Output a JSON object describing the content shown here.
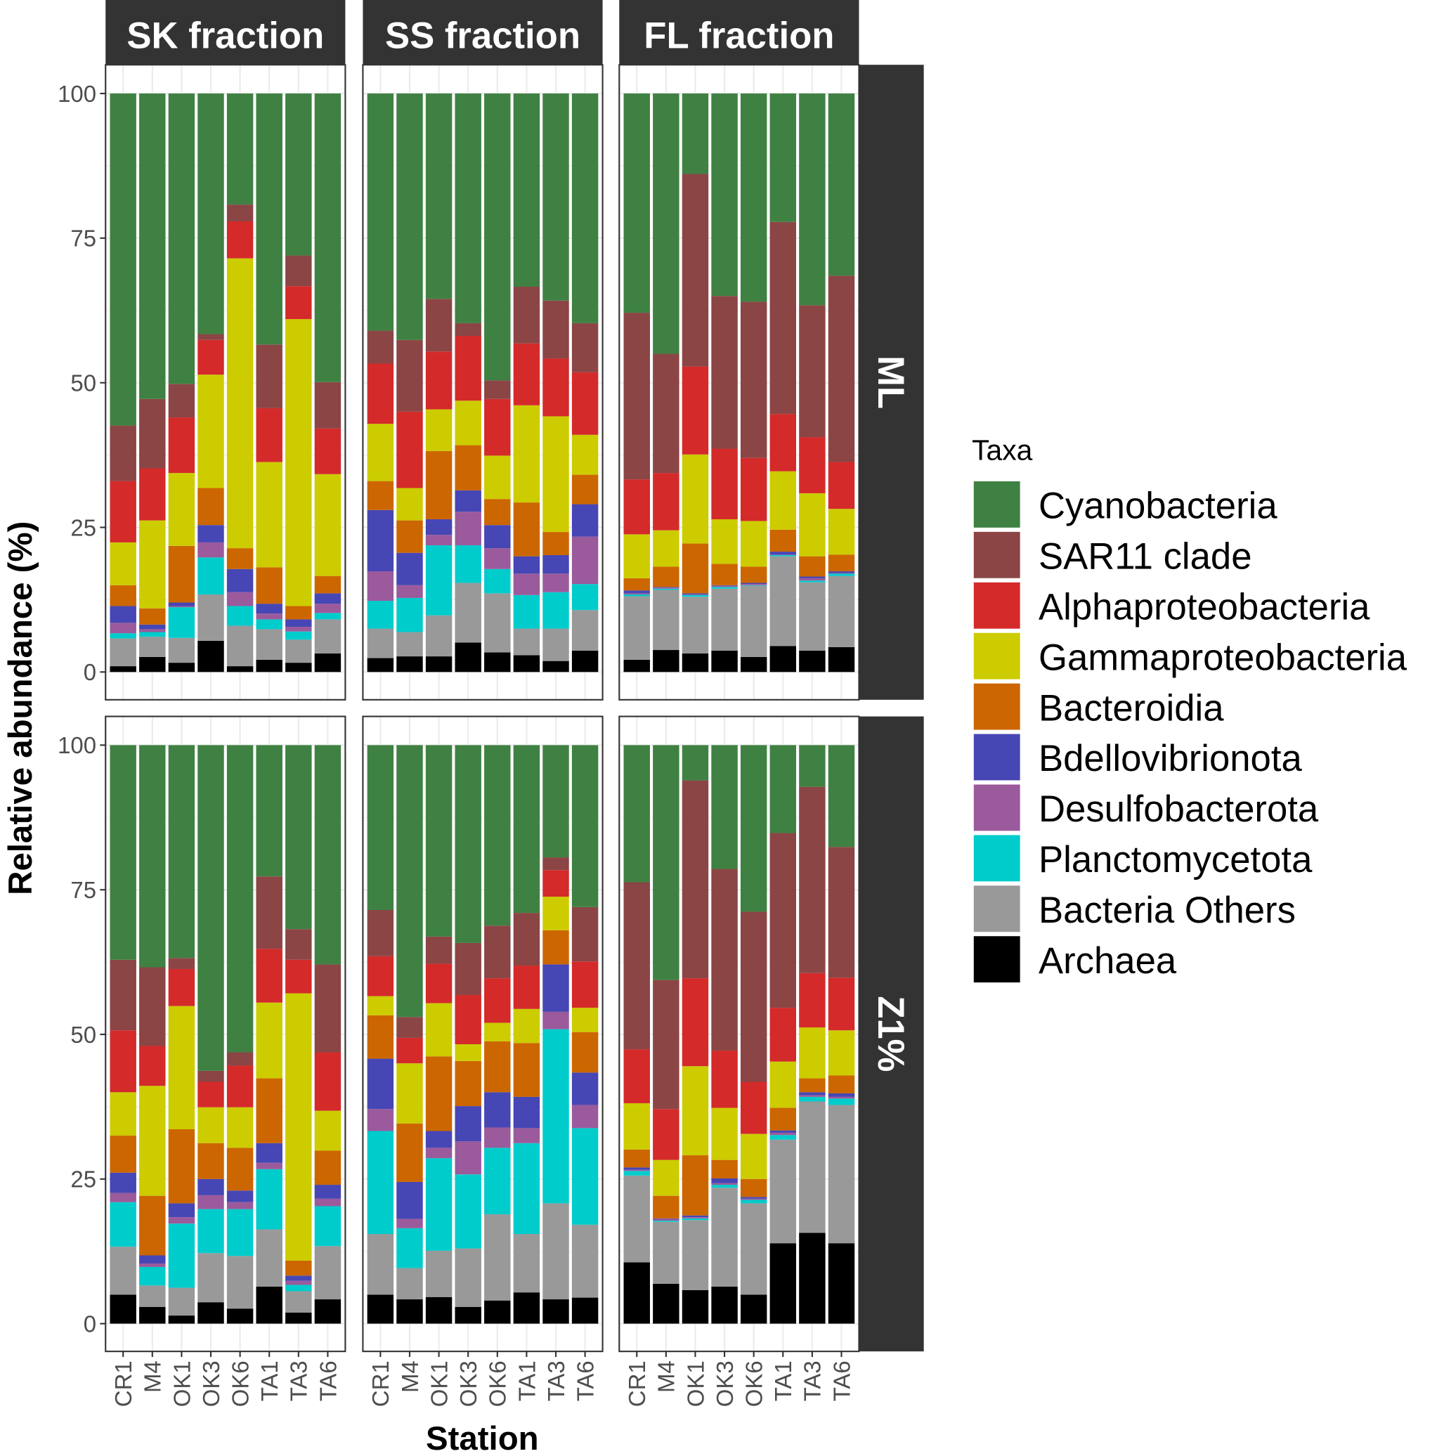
{
  "chart_data": {
    "type": "bar",
    "stacked": true,
    "xlabel": "Station",
    "ylabel": "Relative abundance (%)",
    "ylim": [
      0,
      100
    ],
    "yticks": [
      "0",
      "25",
      "50",
      "75",
      "100"
    ],
    "ytick_values": [
      0,
      25,
      50,
      75,
      100
    ],
    "grid": true,
    "categories": [
      "CR1",
      "M4",
      "OK1",
      "OK3",
      "OK6",
      "TA1",
      "TA3",
      "TA6"
    ],
    "facet_columns": [
      "SK fraction",
      "SS fraction",
      "FL fraction"
    ],
    "facet_rows": [
      "ML",
      "Z1%"
    ],
    "legend": {
      "title": "Taxa",
      "placement": "right",
      "entries": [
        "Cyanobacteria",
        "SAR11 clade",
        "Alphaproteobacteria",
        "Gammaproteobacteria",
        "Bacteroidia",
        "Bdellovibrionota",
        "Desulfobacterota",
        "Planctomycetota",
        "Bacteria Others",
        "Archaea"
      ],
      "colors": [
        "#3f8142",
        "#8b4545",
        "#d42a2a",
        "#cccc00",
        "#cc6600",
        "#4646b4",
        "#9b5a9b",
        "#00cccc",
        "#999999",
        "#000000"
      ]
    },
    "value_order_bottom_to_top": [
      "Archaea",
      "Bacteria Others",
      "Planctomycetota",
      "Desulfobacterota",
      "Bdellovibrionota",
      "Bacteroidia",
      "Gammaproteobacteria",
      "Alphaproteobacteria",
      "SAR11 clade",
      "Cyanobacteria"
    ],
    "panels": [
      {
        "column": "SK fraction",
        "row": "ML",
        "bars": [
          [
            1,
            4.8,
            0.9,
            1.8,
            2.9,
            3.6,
            7.4,
            10.6,
            9.6,
            57.4
          ],
          [
            2.6,
            3.5,
            0.8,
            0.5,
            0.8,
            2.8,
            15.2,
            9,
            12,
            52.8
          ],
          [
            1.6,
            4.3,
            5.3,
            0.2,
            0.6,
            9.8,
            12.6,
            9.6,
            5.8,
            50.2
          ],
          [
            5.4,
            8,
            6.4,
            2.6,
            3,
            6.4,
            19.6,
            6,
            1,
            41.6
          ],
          [
            1,
            7,
            3.4,
            2.4,
            4,
            3.6,
            50.1,
            6.4,
            2.9,
            19.2
          ],
          [
            2.1,
            5.3,
            1.7,
            1,
            1.7,
            6.3,
            18.2,
            9.3,
            11,
            43.4
          ],
          [
            1.6,
            4,
            1.4,
            0.8,
            1.3,
            2.3,
            49.6,
            5.7,
            5.3,
            28
          ],
          [
            3.2,
            5.9,
            1.1,
            1.6,
            1.8,
            3,
            17.6,
            7.9,
            8,
            49.9
          ]
        ]
      },
      {
        "column": "SS fraction",
        "row": "ML",
        "bars": [
          [
            2.4,
            5.1,
            4.8,
            5.1,
            10.6,
            5,
            9.9,
            10.4,
            5.7,
            41
          ],
          [
            2.7,
            4.2,
            5.9,
            2.2,
            5.6,
            5.6,
            5.6,
            13.2,
            12.4,
            42.6
          ],
          [
            2.7,
            7.1,
            12.1,
            1.8,
            2.7,
            11.8,
            7.2,
            10,
            9.1,
            35.5
          ],
          [
            5.1,
            10.3,
            6.5,
            5.8,
            3.7,
            7.8,
            7.7,
            11.2,
            2.2,
            39.7
          ],
          [
            3.4,
            10.2,
            4.2,
            3.6,
            4,
            4.5,
            7.5,
            9.8,
            3.2,
            49.6
          ],
          [
            2.9,
            4.6,
            5.8,
            3.7,
            3,
            9.3,
            16.8,
            10.7,
            9.8,
            33.4
          ],
          [
            1.9,
            5.6,
            6.3,
            3.2,
            3.2,
            4,
            20,
            10,
            10,
            35.8
          ],
          [
            3.7,
            7,
            4.5,
            8.2,
            5.6,
            5.1,
            6.9,
            10.8,
            8.5,
            39.7
          ]
        ]
      },
      {
        "column": "FL fraction",
        "row": "ML",
        "bars": [
          [
            2.1,
            11,
            0.3,
            0.2,
            0.5,
            2.1,
            7.6,
            9.5,
            28.8,
            37.9
          ],
          [
            3.8,
            10.4,
            0.2,
            0.2,
            0.1,
            3.5,
            6.3,
            9.9,
            20.6,
            45
          ],
          [
            3.2,
            9.8,
            0.3,
            0.1,
            0.2,
            8.6,
            15.4,
            15.2,
            33.3,
            13.9
          ],
          [
            3.7,
            10.7,
            0.3,
            0.2,
            0.1,
            3.7,
            7.7,
            12.2,
            26.4,
            35
          ],
          [
            2.6,
            12.3,
            0.1,
            0.2,
            0.2,
            2.8,
            7.9,
            10.9,
            27,
            36
          ],
          [
            4.5,
            15.5,
            0.2,
            0.1,
            0.5,
            3.8,
            10.1,
            9.9,
            33.2,
            22.2
          ],
          [
            3.7,
            11.8,
            0.3,
            0.4,
            0.3,
            3.5,
            10.9,
            9.7,
            22.8,
            36.6
          ],
          [
            4.3,
            12.3,
            0.4,
            0.1,
            0.3,
            2.9,
            7.9,
            8.1,
            32.2,
            31.5
          ]
        ]
      },
      {
        "column": "SK fraction",
        "row": "Z1%",
        "bars": [
          [
            5,
            8.3,
            7.7,
            1.6,
            3.5,
            6.4,
            7.5,
            10.7,
            12.2,
            37.1
          ],
          [
            2.9,
            3.7,
            3.2,
            0.6,
            1.4,
            10.3,
            19,
            6.9,
            13.6,
            38.4
          ],
          [
            1.4,
            4.8,
            11.1,
            1.1,
            2.4,
            12.8,
            21.3,
            6.4,
            1.9,
            36.8
          ],
          [
            3.7,
            8.5,
            7.6,
            2.4,
            2.8,
            6.2,
            6.2,
            4.4,
            1.9,
            56.3
          ],
          [
            2.6,
            9.1,
            8.1,
            1.2,
            2,
            7.4,
            7,
            7.2,
            2.3,
            53.1
          ],
          [
            6.4,
            9.9,
            10.4,
            1.1,
            3.4,
            11.2,
            13.1,
            9.3,
            12.5,
            22.7
          ],
          [
            1.9,
            3.7,
            1.1,
            0.7,
            0.9,
            2.6,
            46.2,
            5.8,
            5.3,
            31.8
          ],
          [
            4.2,
            9.2,
            6.9,
            1.3,
            2.4,
            5.9,
            6.9,
            10.1,
            15.2,
            37.9
          ]
        ]
      },
      {
        "column": "SS fraction",
        "row": "Z1%",
        "bars": [
          [
            5,
            10.5,
            17.8,
            3.8,
            8.7,
            7.5,
            3.3,
            6.9,
            8,
            28.5
          ],
          [
            4.2,
            5.4,
            6.9,
            1.6,
            6.4,
            10.1,
            10.4,
            4.4,
            3.6,
            47
          ],
          [
            4.6,
            8,
            16,
            1.8,
            2.9,
            12.9,
            9.2,
            6.8,
            4.7,
            33.1
          ],
          [
            2.9,
            10.1,
            12.8,
            5.7,
            6.1,
            7.8,
            2.9,
            8.5,
            9,
            34.2
          ],
          [
            4,
            14.9,
            11.5,
            3.5,
            6.1,
            8.8,
            3.2,
            7.7,
            9.1,
            31.2
          ],
          [
            5.4,
            10.1,
            15.7,
            2.6,
            5.4,
            9.3,
            5.9,
            7.5,
            9.1,
            29
          ],
          [
            4.2,
            16.6,
            30.1,
            3,
            8.2,
            5.9,
            5.8,
            4.6,
            2.2,
            19.4
          ],
          [
            4.5,
            12.6,
            16.7,
            4,
            5.6,
            7,
            4.2,
            8,
            9.4,
            28
          ]
        ]
      },
      {
        "column": "FL fraction",
        "row": "Z1%",
        "bars": [
          [
            10.6,
            15,
            0.8,
            0.2,
            0.4,
            3.1,
            8,
            9.3,
            28.9,
            23.7
          ],
          [
            6.9,
            10.7,
            0.2,
            0.3,
            0.1,
            3.9,
            6.2,
            8.8,
            22.3,
            40.6
          ],
          [
            5.8,
            12.1,
            0.3,
            0.2,
            0.3,
            10.4,
            15.4,
            15.2,
            34.2,
            6.1
          ],
          [
            6.4,
            17.1,
            0.5,
            0.3,
            0.8,
            3.2,
            9,
            9.9,
            31.4,
            21.4
          ],
          [
            5,
            15.8,
            0.6,
            0.2,
            0.3,
            3.1,
            7.8,
            9,
            29.4,
            28.8
          ],
          [
            13.9,
            17.9,
            0.8,
            0.4,
            0.4,
            3.9,
            8,
            9.3,
            30.2,
            15.2
          ],
          [
            15.7,
            22.7,
            0.8,
            0.3,
            0.5,
            2.4,
            8.8,
            9.4,
            32.2,
            7.2
          ],
          [
            13.9,
            23.9,
            1.1,
            0.3,
            0.6,
            3.1,
            7.8,
            9.1,
            22.6,
            17.6
          ]
        ]
      }
    ]
  }
}
